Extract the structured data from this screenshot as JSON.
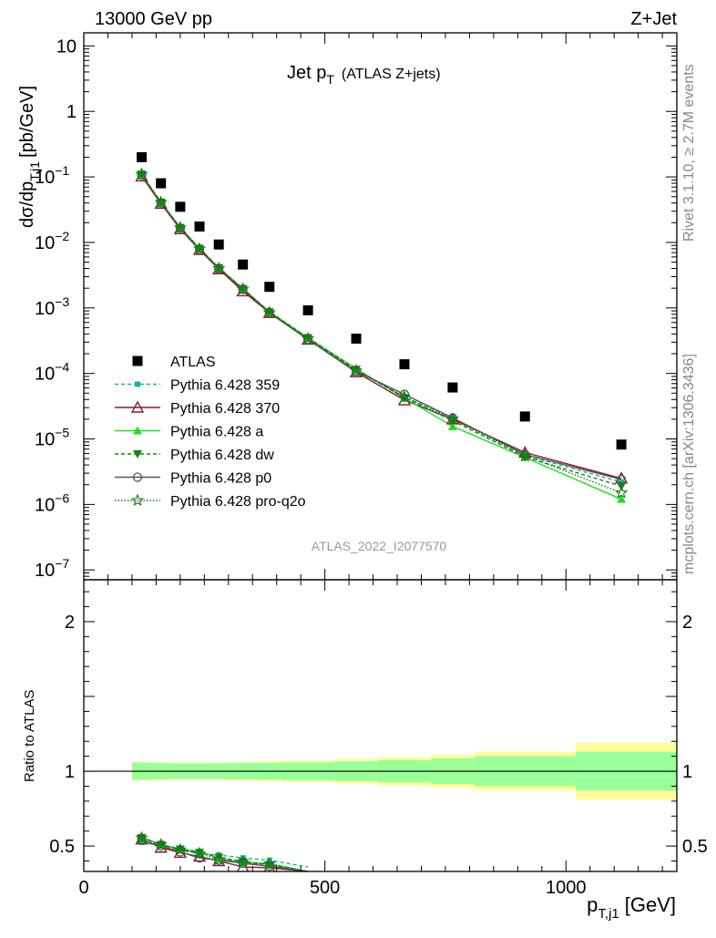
{
  "header": {
    "left": "13000 GeV pp",
    "right": "Z+Jet"
  },
  "side": {
    "rivet": "Rivet 3.1.10, ≥ 2.7M events",
    "mcplots": "mcplots.cern.ch [arXiv:1306.3436]"
  },
  "chart_data": [
    {
      "type": "scatter",
      "title": "Jet p",
      "title_sub": "T",
      "title_extra": "(ATLAS Z+jets)",
      "watermark": "ATLAS_2022_I2077570",
      "ylabel": "dσ/dp",
      "ylabel_sub": "T,j1",
      "ylabel_unit": "[pb/GeV]",
      "y_scale": "log",
      "xlim": [
        0,
        1230
      ],
      "ylim_log10": [
        -7.15,
        1.2
      ],
      "y_ticks": [
        {
          "exp": 1,
          "label": "10"
        },
        {
          "exp": 0,
          "label": "1"
        },
        {
          "exp": -1,
          "label": "10",
          "sup": "−1"
        },
        {
          "exp": -2,
          "label": "10",
          "sup": "−2"
        },
        {
          "exp": -3,
          "label": "10",
          "sup": "−3"
        },
        {
          "exp": -4,
          "label": "10",
          "sup": "−4"
        },
        {
          "exp": -5,
          "label": "10",
          "sup": "−5"
        },
        {
          "exp": -6,
          "label": "10",
          "sup": "−6"
        },
        {
          "exp": -7,
          "label": "10",
          "sup": "−7"
        }
      ],
      "legend_position": "center-left",
      "x": [
        120,
        160,
        200,
        240,
        280,
        330,
        385,
        465,
        565,
        665,
        765,
        915,
        1115
      ],
      "series": [
        {
          "name": "ATLAS",
          "marker": "square",
          "color": "#000000",
          "dash": "none",
          "values": [
            0.2,
            0.08,
            0.035,
            0.0175,
            0.0093,
            0.0046,
            0.0021,
            0.00092,
            0.00034,
            0.000138,
            6.1e-05,
            2.2e-05,
            8.2e-06
          ]
        },
        {
          "name": "Pythia 6.428 359",
          "marker": "small-square",
          "color": "#1ab29a",
          "dash": "4,3",
          "values": [
            0.105,
            0.04,
            0.0165,
            0.0079,
            0.0041,
            0.00195,
            0.00085,
            0.00034,
            0.000112,
            4.4e-05,
            2.1e-05,
            5.6e-06,
            2.2e-06
          ]
        },
        {
          "name": "Pythia 6.428 370",
          "marker": "open-triangle",
          "color": "#8c1a2e",
          "dash": "none",
          "values": [
            0.102,
            0.039,
            0.016,
            0.0077,
            0.0039,
            0.0018,
            0.00084,
            0.00033,
            0.000105,
            3.9e-05,
            2e-05,
            6.2e-06,
            2.5e-06
          ]
        },
        {
          "name": "Pythia 6.428 a",
          "marker": "triangle",
          "color": "#22dd22",
          "dash": "none",
          "values": [
            0.109,
            0.041,
            0.0168,
            0.0081,
            0.0041,
            0.00197,
            0.00087,
            0.00035,
            0.000118,
            4.2e-05,
            1.55e-05,
            5.2e-06,
            1.2e-06
          ]
        },
        {
          "name": "Pythia 6.428 dw",
          "marker": "down-triangle",
          "color": "#118811",
          "dash": "4,3",
          "values": [
            0.11,
            0.041,
            0.0169,
            0.0081,
            0.0041,
            0.00197,
            0.00087,
            0.00035,
            0.000115,
            4.2e-05,
            1.9e-05,
            5.3e-06,
            1.9e-06
          ]
        },
        {
          "name": "Pythia 6.428 p0",
          "marker": "open-circle",
          "color": "#555555",
          "dash": "none",
          "values": [
            0.106,
            0.04,
            0.0165,
            0.0078,
            0.004,
            0.00192,
            0.00084,
            0.00033,
            0.000108,
            4.8e-05,
            2.1e-05,
            5.8e-06,
            2.4e-06
          ]
        },
        {
          "name": "Pythia 6.428 pro-q2o",
          "marker": "open-star",
          "color": "#117711",
          "dash": "1.5,2",
          "values": [
            0.11,
            0.041,
            0.0168,
            0.008,
            0.004,
            0.00194,
            0.00085,
            0.00034,
            0.00011,
            4.4e-05,
            2e-05,
            5.6e-06,
            1.5e-06
          ]
        }
      ]
    },
    {
      "type": "scatter",
      "ylabel": "Ratio to ATLAS",
      "xlabel": "p",
      "xlabel_sub": "T,j1",
      "xlabel_unit": "[GeV]",
      "xlim": [
        0,
        1230
      ],
      "ylim": [
        0.33,
        2.28
      ],
      "y_ticks": [
        {
          "v": 0.5,
          "label": "0.5"
        },
        {
          "v": 1,
          "label": "1"
        },
        {
          "v": 2,
          "label": "2"
        }
      ],
      "x_ticks": [
        {
          "v": 0,
          "label": "0"
        },
        {
          "v": 500,
          "label": "500"
        },
        {
          "v": 1000,
          "label": "1000"
        }
      ],
      "bands": {
        "edges": [
          100,
          140,
          180,
          220,
          260,
          300,
          360,
          410,
          520,
          610,
          720,
          810,
          1020,
          1230
        ],
        "inner": [
          0.058,
          0.054,
          0.052,
          0.052,
          0.052,
          0.054,
          0.056,
          0.06,
          0.066,
          0.074,
          0.085,
          0.1,
          0.13
        ],
        "outer": [
          0.064,
          0.06,
          0.058,
          0.058,
          0.058,
          0.062,
          0.066,
          0.072,
          0.082,
          0.095,
          0.11,
          0.13,
          0.19
        ]
      },
      "x": [
        120,
        160,
        200,
        240,
        280,
        330,
        385,
        465
      ],
      "series": [
        {
          "name": "Pythia 6.428 359",
          "values": [
            0.525,
            0.5,
            0.47,
            0.45,
            0.44,
            0.42,
            0.405,
            0.36
          ]
        },
        {
          "name": "Pythia 6.428 370",
          "values": [
            0.545,
            0.49,
            0.455,
            0.43,
            0.4,
            0.36,
            0.355,
            0.33
          ]
        },
        {
          "name": "Pythia 6.428 a",
          "values": [
            0.56,
            0.51,
            0.48,
            0.463,
            0.42,
            0.385,
            0.382,
            0.33
          ]
        },
        {
          "name": "Pythia 6.428 dw",
          "values": [
            0.556,
            0.51,
            0.479,
            0.457,
            0.424,
            0.397,
            0.374,
            0.33
          ]
        },
        {
          "name": "Pythia 6.428 p0",
          "values": [
            0.54,
            0.5,
            0.46,
            0.42,
            0.405,
            0.385,
            0.365,
            0.33
          ]
        },
        {
          "name": "Pythia 6.428 pro-q2o",
          "values": [
            0.555,
            0.51,
            0.475,
            0.45,
            0.41,
            0.395,
            0.38,
            0.33
          ]
        }
      ]
    }
  ]
}
